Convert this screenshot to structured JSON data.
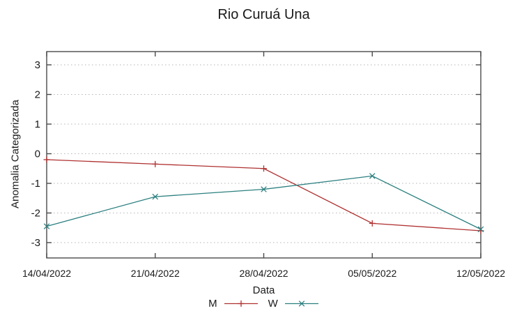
{
  "chart_data": {
    "type": "line",
    "title": "Rio Curuá Una",
    "xlabel": "Data",
    "ylabel": "Anomalia Categorizada",
    "x_categories": [
      "14/04/2022",
      "21/04/2022",
      "28/04/2022",
      "05/05/2022",
      "12/05/2022"
    ],
    "y_ticks": [
      3,
      2,
      1,
      0,
      -1,
      -2,
      -3
    ],
    "ylim": [
      -3.55,
      3.45
    ],
    "grid": "horizontal-dotted",
    "legend_position": "bottom-center",
    "series": [
      {
        "name": "M",
        "color": "#b03030",
        "marker": "plus",
        "values": [
          -0.2,
          -0.35,
          -0.5,
          -2.35,
          -2.6
        ]
      },
      {
        "name": "W",
        "color": "#2c7f7f",
        "marker": "cross",
        "values": [
          -2.45,
          -1.45,
          -1.2,
          -0.75,
          -2.55
        ]
      }
    ]
  },
  "colors": {
    "background": "#ffffff",
    "border": "#4a4a4a",
    "grid": "#b5b5b5",
    "text": "#1a1a1a"
  }
}
